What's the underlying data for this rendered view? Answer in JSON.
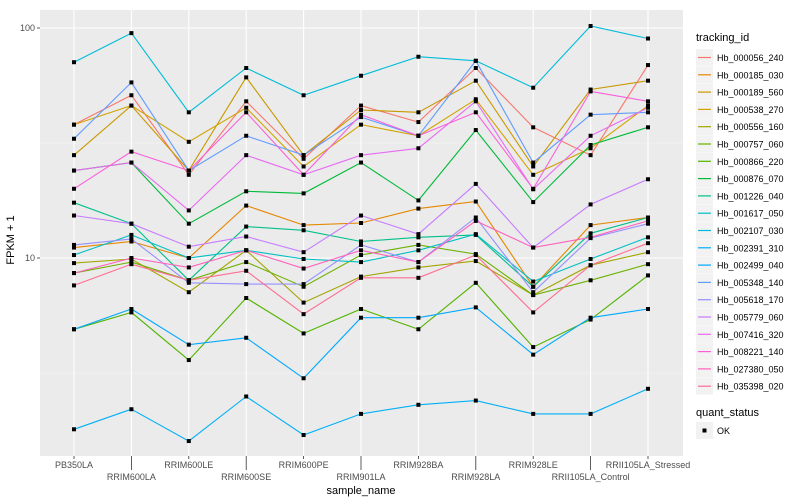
{
  "chart_data": {
    "type": "line",
    "title": "",
    "xlabel": "sample_name",
    "ylabel": "FPKM + 1",
    "yscale": "log10",
    "ylim": [
      1.3,
      115
    ],
    "y_ticks": [
      {
        "value": 10,
        "label": "10"
      },
      {
        "value": 100,
        "label": "100"
      }
    ],
    "grid": true,
    "categories": [
      "PB350LA",
      "RRIM600LA",
      "RRIM600LE",
      "RRIM600SE",
      "RRIM600PE",
      "RRIM901LA",
      "RRIM928BA",
      "RRIM928LA",
      "RRIM928LE",
      "RRII105LA_Control",
      "RRII105LA_Stressed"
    ],
    "legend_position": "right",
    "legend_title": "tracking_id",
    "series": [
      {
        "name": "Hb_000056_240",
        "color": "#F8766D",
        "values": [
          38,
          51,
          23,
          48,
          27,
          46,
          39,
          67,
          37,
          28,
          69
        ]
      },
      {
        "name": "Hb_000185_030",
        "color": "#E58700",
        "values": [
          11.1,
          11.8,
          10,
          16.9,
          13.9,
          14.2,
          16.4,
          17.6,
          7.5,
          13.9,
          15
        ]
      },
      {
        "name": "Hb_000189_560",
        "color": "#C99800",
        "values": [
          28,
          46,
          24,
          61,
          28,
          44,
          43,
          59,
          25,
          54,
          59
        ]
      },
      {
        "name": "Hb_000538_270",
        "color": "#D2A300",
        "values": [
          38,
          46,
          32,
          45,
          25,
          38,
          34,
          49,
          23,
          30,
          46
        ]
      },
      {
        "name": "Hb_000556_160",
        "color": "#A3A500",
        "values": [
          9.5,
          9.9,
          7.1,
          10.8,
          6.4,
          8.3,
          9.1,
          9.7,
          6.9,
          9.3,
          10.6
        ]
      },
      {
        "name": "Hb_000757_060",
        "color": "#6BB100",
        "values": [
          8.6,
          9.6,
          8.0,
          9.6,
          7.5,
          10.3,
          11.4,
          10.4,
          6.9,
          8.0,
          9.4
        ]
      },
      {
        "name": "Hb_000866_220",
        "color": "#53B400",
        "values": [
          4.9,
          5.8,
          3.6,
          6.7,
          4.7,
          6.0,
          4.9,
          7.8,
          4.1,
          5.4,
          8.4
        ]
      },
      {
        "name": "Hb_000876_070",
        "color": "#00BA38",
        "values": [
          24,
          26,
          14.1,
          19.5,
          19.1,
          26,
          17.8,
          36,
          17.5,
          31,
          37
        ]
      },
      {
        "name": "Hb_001226_040",
        "color": "#00C08B",
        "values": [
          17.4,
          14.1,
          8.0,
          13.7,
          13.2,
          11.8,
          12.3,
          12.6,
          7.5,
          12.8,
          15
        ]
      },
      {
        "name": "Hb_001617_050",
        "color": "#00BFC4",
        "values": [
          10.3,
          12.6,
          10,
          10.8,
          9.9,
          9.6,
          10.8,
          12.7,
          7.9,
          9.9,
          12.3
        ]
      },
      {
        "name": "Hb_002107_030",
        "color": "#00BCD8",
        "values": [
          71,
          95,
          43,
          67,
          51,
          62,
          75,
          72,
          55,
          102,
          90
        ]
      },
      {
        "name": "Hb_002391_310",
        "color": "#00B0F6",
        "values": [
          1.8,
          2.2,
          1.6,
          2.5,
          1.7,
          2.1,
          2.3,
          2.4,
          2.1,
          2.1,
          2.7
        ]
      },
      {
        "name": "Hb_002499_040",
        "color": "#00A9FF",
        "values": [
          4.9,
          6.0,
          4.2,
          4.5,
          3.0,
          5.5,
          5.5,
          6.1,
          3.8,
          5.5,
          6.0
        ]
      },
      {
        "name": "Hb_005348_140",
        "color": "#619CFF",
        "values": [
          33,
          58,
          24,
          34,
          28,
          41,
          34,
          72,
          26,
          42,
          43
        ]
      },
      {
        "name": "Hb_005618_170",
        "color": "#9590FF",
        "values": [
          11.4,
          12.1,
          7.8,
          7.7,
          7.7,
          11.4,
          9.6,
          15,
          7.1,
          12.2,
          14.1
        ]
      },
      {
        "name": "Hb_005779_060",
        "color": "#C77CFF",
        "values": [
          15.3,
          14.1,
          11.2,
          12.4,
          10.6,
          15.3,
          12.7,
          21,
          11.1,
          17.1,
          22
        ]
      },
      {
        "name": "Hb_007416_320",
        "color": "#E76BF3",
        "values": [
          24,
          26,
          16.1,
          28,
          23,
          28,
          30,
          48,
          19.9,
          34,
          45
        ]
      },
      {
        "name": "Hb_008221_140",
        "color": "#FA62DB",
        "values": [
          20,
          29,
          24,
          43,
          23,
          42,
          34,
          43,
          20,
          53,
          48
        ]
      },
      {
        "name": "Hb_027380_050",
        "color": "#FF62BC",
        "values": [
          8.6,
          10,
          9.1,
          10.8,
          9.0,
          10.8,
          9.6,
          14.5,
          11.1,
          12.3,
          14.5
        ]
      },
      {
        "name": "Hb_035398_020",
        "color": "#FF6C91",
        "values": [
          7.6,
          9.4,
          8.0,
          8.8,
          5.7,
          8.2,
          8.2,
          10.3,
          5.8,
          9.3,
          11.6
        ]
      }
    ],
    "shape_legend": {
      "title": "quant_status",
      "items": [
        {
          "label": "OK",
          "shape": "square"
        }
      ]
    }
  }
}
